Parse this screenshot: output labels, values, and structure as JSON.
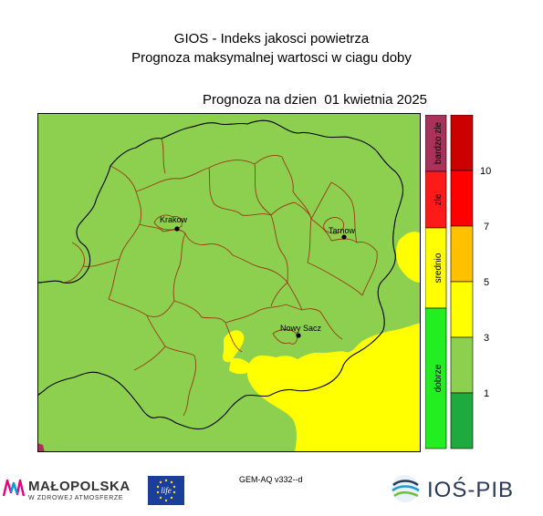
{
  "title_line1": "GIOS - Indeks jakosci powietrza",
  "title_line2": "Prognoza maksymalnej wartosci w ciagu doby",
  "forecast_label": "Prognoza na dzien  01 kwietnia 2025",
  "cities": [
    {
      "name": "Krakow"
    },
    {
      "name": "Tarnow"
    },
    {
      "name": "Nowy Sacz"
    }
  ],
  "categories": [
    {
      "label": "bardzo zle",
      "color": "#a8325a"
    },
    {
      "label": "zle",
      "color": "#ff1a1a"
    },
    {
      "label": "srednio",
      "color": "#ffff00"
    },
    {
      "label": "dobrze",
      "color": "#22ee22"
    }
  ],
  "scale": {
    "ticks": [
      "10",
      "7",
      "5",
      "3",
      "1"
    ],
    "colors": [
      "#cc0000",
      "#ff0000",
      "#ffc000",
      "#ffff00",
      "#8dcf4f",
      "#1faa3f"
    ]
  },
  "map_colors": {
    "background": "#8dcf4f",
    "high": "#ffff00"
  },
  "model_label": "GEM-AQ v332--d",
  "logos": {
    "malopolska_name": "MAŁOPOLSKA",
    "malopolska_tagline": "W ZDROWEJ ATMOSFERZE",
    "eu_life": "life",
    "ios": "IOŚ-PIB"
  }
}
